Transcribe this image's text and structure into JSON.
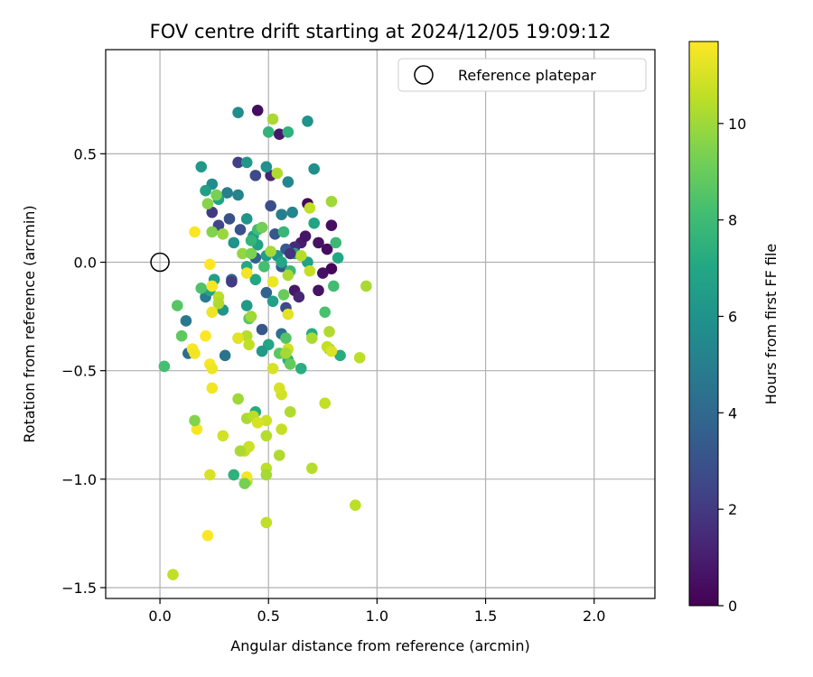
{
  "chart_data": {
    "type": "scatter",
    "title": "FOV centre drift starting at 2024/12/05 19:09:12",
    "xlabel": "Angular distance from reference (arcmin)",
    "ylabel": "Rotation from reference (arcmin)",
    "xlim": [
      -0.25,
      2.28
    ],
    "ylim": [
      -1.55,
      0.98
    ],
    "xticks": [
      0.0,
      0.5,
      1.0,
      1.5,
      2.0
    ],
    "xtick_labels": [
      "0.0",
      "0.5",
      "1.0",
      "1.5",
      "2.0"
    ],
    "yticks": [
      -1.5,
      -1.0,
      -0.5,
      0.0,
      0.5
    ],
    "ytick_labels": [
      "−1.5",
      "−1.0",
      "−0.5",
      "0.0",
      "0.5"
    ],
    "grid": true,
    "legend": {
      "placement": "top-right",
      "entries": [
        {
          "label": "Reference platepar",
          "marker": "open-circle"
        }
      ]
    },
    "reference_point": {
      "x": 0.0,
      "y": 0.0
    },
    "colorbar": {
      "label": "Hours from first FF file",
      "colormap": "viridis",
      "range": [
        0,
        11.7
      ],
      "ticks": [
        0,
        2,
        4,
        6,
        8,
        10
      ],
      "tick_labels": [
        "0",
        "2",
        "4",
        "6",
        "8",
        "10"
      ]
    },
    "series": [
      {
        "points": [
          [
            0.45,
            0.7,
            0.4
          ],
          [
            0.55,
            0.59,
            0.8
          ],
          [
            0.51,
            0.4,
            1.2
          ],
          [
            0.68,
            0.27,
            0.3
          ],
          [
            0.79,
            0.17,
            0.5
          ],
          [
            0.73,
            0.09,
            0.6
          ],
          [
            0.77,
            0.06,
            0.4
          ],
          [
            0.65,
            0.09,
            0.9
          ],
          [
            0.67,
            0.12,
            0.7
          ],
          [
            0.62,
            0.07,
            1.5
          ],
          [
            0.79,
            -0.03,
            0.2
          ],
          [
            0.75,
            -0.05,
            0.5
          ],
          [
            0.73,
            -0.13,
            0.6
          ],
          [
            0.62,
            -0.13,
            0.8
          ],
          [
            0.64,
            -0.16,
            1.3
          ],
          [
            0.36,
            0.46,
            2.2
          ],
          [
            0.44,
            0.4,
            2.6
          ],
          [
            0.24,
            0.23,
            2.0
          ],
          [
            0.32,
            0.2,
            2.9
          ],
          [
            0.51,
            0.26,
            2.8
          ],
          [
            0.27,
            0.17,
            2.5
          ],
          [
            0.37,
            0.15,
            3.0
          ],
          [
            0.53,
            0.13,
            3.2
          ],
          [
            0.58,
            0.06,
            3.4
          ],
          [
            0.44,
            0.02,
            3.6
          ],
          [
            0.56,
            -0.02,
            3.3
          ],
          [
            0.33,
            -0.08,
            3.8
          ],
          [
            0.49,
            -0.14,
            3.7
          ],
          [
            0.58,
            -0.21,
            2.7
          ],
          [
            0.47,
            -0.31,
            3.2
          ],
          [
            0.13,
            -0.42,
            4.2
          ],
          [
            0.3,
            -0.43,
            4.5
          ],
          [
            0.12,
            -0.27,
            4.7
          ],
          [
            0.21,
            -0.16,
            4.8
          ],
          [
            0.56,
            -0.33,
            4.4
          ],
          [
            0.36,
            0.69,
            5.7
          ],
          [
            0.68,
            0.65,
            6.0
          ],
          [
            0.49,
            0.44,
            5.9
          ],
          [
            0.59,
            0.37,
            5.4
          ],
          [
            0.24,
            0.36,
            5.6
          ],
          [
            0.31,
            0.32,
            5.0
          ],
          [
            0.36,
            0.31,
            5.2
          ],
          [
            0.56,
            0.22,
            5.0
          ],
          [
            0.61,
            0.23,
            5.3
          ],
          [
            0.71,
            0.43,
            5.8
          ],
          [
            0.4,
            0.46,
            6.2
          ],
          [
            0.19,
            0.44,
            6.3
          ],
          [
            0.21,
            0.33,
            6.6
          ],
          [
            0.27,
            0.29,
            6.8
          ],
          [
            0.4,
            0.2,
            6.1
          ],
          [
            0.43,
            0.12,
            6.4
          ],
          [
            0.45,
            0.08,
            6.7
          ],
          [
            0.34,
            0.09,
            6.0
          ],
          [
            0.49,
            0.03,
            6.5
          ],
          [
            0.54,
            0.03,
            6.2
          ],
          [
            0.62,
            0.04,
            6.9
          ],
          [
            0.68,
            0.0,
            6.7
          ],
          [
            0.56,
            0.0,
            7.0
          ],
          [
            0.4,
            -0.02,
            7.1
          ],
          [
            0.25,
            -0.08,
            6.5
          ],
          [
            0.23,
            -0.13,
            6.8
          ],
          [
            0.44,
            -0.08,
            7.0
          ],
          [
            0.52,
            -0.18,
            6.6
          ],
          [
            0.4,
            -0.2,
            6.3
          ],
          [
            0.29,
            -0.22,
            6.1
          ],
          [
            0.5,
            -0.38,
            6.9
          ],
          [
            0.47,
            -0.41,
            6.4
          ],
          [
            0.59,
            -0.45,
            7.4
          ],
          [
            0.65,
            -0.49,
            7.3
          ],
          [
            0.83,
            -0.43,
            7.2
          ],
          [
            0.82,
            0.02,
            7.0
          ],
          [
            0.71,
            0.18,
            6.8
          ],
          [
            0.7,
            -0.33,
            7.2
          ],
          [
            0.44,
            -0.69,
            7.2
          ],
          [
            0.34,
            -0.98,
            7.5
          ],
          [
            0.5,
            0.6,
            7.6
          ],
          [
            0.59,
            0.6,
            7.5
          ],
          [
            0.45,
            0.15,
            8.0
          ],
          [
            0.57,
            0.14,
            7.8
          ],
          [
            0.6,
            -0.04,
            7.9
          ],
          [
            0.42,
            0.1,
            7.7
          ],
          [
            0.48,
            -0.02,
            8.2
          ],
          [
            0.8,
            -0.11,
            8.1
          ],
          [
            0.76,
            -0.23,
            8.3
          ],
          [
            0.78,
            -0.4,
            8.0
          ],
          [
            0.02,
            -0.48,
            8.2
          ],
          [
            0.08,
            -0.2,
            8.6
          ],
          [
            0.19,
            -0.12,
            8.4
          ],
          [
            0.1,
            -0.34,
            8.8
          ],
          [
            0.58,
            -0.35,
            8.5
          ],
          [
            0.41,
            -0.26,
            8.7
          ],
          [
            0.6,
            -0.47,
            8.9
          ],
          [
            0.57,
            -0.15,
            9.0
          ],
          [
            0.81,
            0.09,
            7.9
          ],
          [
            0.55,
            -0.42,
            8.7
          ],
          [
            0.26,
            0.31,
            9.3
          ],
          [
            0.22,
            0.27,
            9.6
          ],
          [
            0.29,
            0.13,
            9.9
          ],
          [
            0.24,
            0.14,
            9.5
          ],
          [
            0.47,
            0.16,
            9.2
          ],
          [
            0.38,
            0.04,
            9.8
          ],
          [
            0.42,
            0.04,
            9.4
          ],
          [
            0.51,
            0.05,
            10.1
          ],
          [
            0.54,
            0.41,
            10.3
          ],
          [
            0.52,
            0.66,
            10.2
          ],
          [
            0.79,
            0.28,
            10.0
          ],
          [
            0.69,
            0.25,
            10.6
          ],
          [
            0.65,
            0.03,
            10.4
          ],
          [
            0.69,
            -0.04,
            10.7
          ],
          [
            0.59,
            -0.06,
            10.2
          ],
          [
            0.27,
            -0.16,
            10.5
          ],
          [
            0.27,
            -0.19,
            10.3
          ],
          [
            0.36,
            -0.35,
            10.8
          ],
          [
            0.4,
            -0.34,
            10.4
          ],
          [
            0.41,
            -0.38,
            10.6
          ],
          [
            0.59,
            -0.4,
            10.9
          ],
          [
            0.7,
            -0.35,
            10.2
          ],
          [
            0.78,
            -0.32,
            10.3
          ],
          [
            0.77,
            -0.39,
            10.6
          ],
          [
            0.58,
            -0.42,
            10.1
          ],
          [
            0.95,
            -0.11,
            10.2
          ],
          [
            0.92,
            -0.44,
            10.5
          ],
          [
            0.76,
            -0.65,
            10.6
          ],
          [
            0.7,
            -0.95,
            10.4
          ],
          [
            0.9,
            -1.12,
            10.5
          ],
          [
            0.36,
            -0.63,
            10.0
          ],
          [
            0.4,
            -0.72,
            10.2
          ],
          [
            0.43,
            -0.71,
            10.5
          ],
          [
            0.49,
            -0.8,
            10.4
          ],
          [
            0.56,
            -0.77,
            10.7
          ],
          [
            0.55,
            -0.89,
            10.3
          ],
          [
            0.49,
            -0.95,
            10.5
          ],
          [
            0.39,
            -0.87,
            10.6
          ],
          [
            0.41,
            -0.85,
            10.8
          ],
          [
            0.37,
            -0.87,
            10.2
          ],
          [
            0.49,
            -1.2,
            10.6
          ],
          [
            0.4,
            -1.01,
            10.3
          ],
          [
            0.06,
            -1.44,
            10.6
          ],
          [
            0.56,
            -0.61,
            10.9
          ],
          [
            0.6,
            -0.69,
            10.3
          ],
          [
            0.49,
            -0.98,
            10.1
          ],
          [
            0.49,
            -0.73,
            10.8
          ],
          [
            0.29,
            -0.8,
            10.9
          ],
          [
            0.23,
            -0.98,
            11.0
          ],
          [
            0.45,
            -0.74,
            11.0
          ],
          [
            0.42,
            -0.25,
            10.0
          ],
          [
            0.52,
            -0.09,
            11.4
          ],
          [
            0.59,
            -0.24,
            11.2
          ],
          [
            0.52,
            -0.49,
            11.0
          ],
          [
            0.79,
            -0.41,
            11.1
          ],
          [
            0.16,
            0.14,
            11.6
          ],
          [
            0.23,
            -0.01,
            11.7
          ],
          [
            0.4,
            -0.05,
            11.5
          ],
          [
            0.24,
            -0.11,
            11.6
          ],
          [
            0.24,
            -0.23,
            11.4
          ],
          [
            0.21,
            -0.34,
            11.7
          ],
          [
            0.15,
            -0.4,
            11.6
          ],
          [
            0.16,
            -0.42,
            11.5
          ],
          [
            0.23,
            -0.47,
            11.6
          ],
          [
            0.24,
            -0.49,
            11.4
          ],
          [
            0.24,
            -0.58,
            11.5
          ],
          [
            0.17,
            -0.77,
            11.6
          ],
          [
            0.22,
            -1.26,
            11.7
          ],
          [
            0.36,
            -0.35,
            11.2
          ],
          [
            0.55,
            -0.58,
            11.0
          ],
          [
            0.4,
            -0.99,
            11.5
          ],
          [
            0.16,
            -0.73,
            9.5
          ],
          [
            0.39,
            -1.02,
            9.3
          ],
          [
            0.33,
            -0.09,
            2.1
          ],
          [
            0.6,
            0.04,
            1.8
          ]
        ]
      }
    ]
  }
}
